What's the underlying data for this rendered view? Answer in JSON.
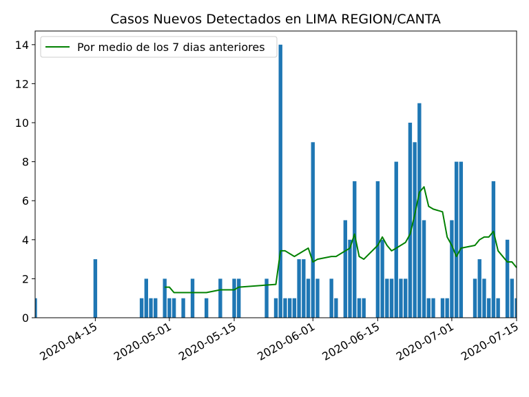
{
  "chart_data": {
    "type": "bar",
    "title": "Casos Nuevos Detectados en LIMA REGION/CANTA",
    "xlabel": "",
    "ylabel": "",
    "x_range": [
      "2020-04-02",
      "2020-07-15"
    ],
    "ylim": [
      0,
      14.7
    ],
    "y_ticks": [
      0,
      2,
      4,
      6,
      8,
      10,
      12,
      14
    ],
    "x_ticks": [
      "2020-04-15",
      "2020-05-01",
      "2020-05-15",
      "2020-06-01",
      "2020-06-15",
      "2020-07-01",
      "2020-07-15"
    ],
    "grid": false,
    "legend": {
      "placement": "top-left",
      "entries": [
        "Por medio de los 7 dias anteriores"
      ]
    },
    "colors": {
      "bars": "#1f77b4",
      "line": "#008000"
    },
    "series": [
      {
        "type": "bar",
        "points": [
          [
            "2020-04-02",
            1
          ],
          [
            "2020-04-15",
            3
          ],
          [
            "2020-04-25",
            1
          ],
          [
            "2020-04-26",
            2
          ],
          [
            "2020-04-27",
            1
          ],
          [
            "2020-04-28",
            1
          ],
          [
            "2020-04-30",
            2
          ],
          [
            "2020-05-01",
            1
          ],
          [
            "2020-05-02",
            1
          ],
          [
            "2020-05-04",
            1
          ],
          [
            "2020-05-06",
            2
          ],
          [
            "2020-05-09",
            1
          ],
          [
            "2020-05-12",
            2
          ],
          [
            "2020-05-15",
            2
          ],
          [
            "2020-05-16",
            2
          ],
          [
            "2020-05-22",
            2
          ],
          [
            "2020-05-24",
            1
          ],
          [
            "2020-05-25",
            14
          ],
          [
            "2020-05-26",
            1
          ],
          [
            "2020-05-27",
            1
          ],
          [
            "2020-05-28",
            1
          ],
          [
            "2020-05-29",
            3
          ],
          [
            "2020-05-30",
            3
          ],
          [
            "2020-05-31",
            2
          ],
          [
            "2020-06-01",
            9
          ],
          [
            "2020-06-02",
            2
          ],
          [
            "2020-06-05",
            2
          ],
          [
            "2020-06-06",
            1
          ],
          [
            "2020-06-08",
            5
          ],
          [
            "2020-06-09",
            4
          ],
          [
            "2020-06-10",
            7
          ],
          [
            "2020-06-11",
            1
          ],
          [
            "2020-06-12",
            1
          ],
          [
            "2020-06-15",
            7
          ],
          [
            "2020-06-16",
            4
          ],
          [
            "2020-06-17",
            2
          ],
          [
            "2020-06-18",
            2
          ],
          [
            "2020-06-19",
            8
          ],
          [
            "2020-06-20",
            2
          ],
          [
            "2020-06-21",
            2
          ],
          [
            "2020-06-22",
            10
          ],
          [
            "2020-06-23",
            9
          ],
          [
            "2020-06-24",
            11
          ],
          [
            "2020-06-25",
            5
          ],
          [
            "2020-06-26",
            1
          ],
          [
            "2020-06-27",
            1
          ],
          [
            "2020-06-29",
            1
          ],
          [
            "2020-06-30",
            1
          ],
          [
            "2020-07-01",
            5
          ],
          [
            "2020-07-02",
            8
          ],
          [
            "2020-07-03",
            8
          ],
          [
            "2020-07-06",
            2
          ],
          [
            "2020-07-07",
            3
          ],
          [
            "2020-07-08",
            2
          ],
          [
            "2020-07-09",
            1
          ],
          [
            "2020-07-10",
            7
          ],
          [
            "2020-07-11",
            1
          ],
          [
            "2020-07-13",
            4
          ],
          [
            "2020-07-14",
            2
          ],
          [
            "2020-07-15",
            1
          ]
        ]
      },
      {
        "type": "line",
        "name": "Por medio de los 7 dias anteriores",
        "points": [
          [
            "2020-04-30",
            1.57
          ],
          [
            "2020-05-01",
            1.57
          ],
          [
            "2020-05-02",
            1.29
          ],
          [
            "2020-05-09",
            1.29
          ],
          [
            "2020-05-12",
            1.43
          ],
          [
            "2020-05-15",
            1.43
          ],
          [
            "2020-05-16",
            1.57
          ],
          [
            "2020-05-24",
            1.71
          ],
          [
            "2020-05-25",
            3.43
          ],
          [
            "2020-05-26",
            3.43
          ],
          [
            "2020-05-28",
            3.14
          ],
          [
            "2020-05-31",
            3.57
          ],
          [
            "2020-06-01",
            2.86
          ],
          [
            "2020-06-02",
            3.0
          ],
          [
            "2020-06-05",
            3.14
          ],
          [
            "2020-06-06",
            3.14
          ],
          [
            "2020-06-08",
            3.43
          ],
          [
            "2020-06-09",
            3.57
          ],
          [
            "2020-06-10",
            4.29
          ],
          [
            "2020-06-11",
            3.14
          ],
          [
            "2020-06-12",
            3.0
          ],
          [
            "2020-06-15",
            3.71
          ],
          [
            "2020-06-16",
            4.14
          ],
          [
            "2020-06-17",
            3.71
          ],
          [
            "2020-06-18",
            3.43
          ],
          [
            "2020-06-19",
            3.57
          ],
          [
            "2020-06-21",
            3.86
          ],
          [
            "2020-06-22",
            4.29
          ],
          [
            "2020-06-23",
            5.29
          ],
          [
            "2020-06-24",
            6.43
          ],
          [
            "2020-06-25",
            6.71
          ],
          [
            "2020-06-26",
            5.71
          ],
          [
            "2020-06-27",
            5.57
          ],
          [
            "2020-06-29",
            5.43
          ],
          [
            "2020-06-30",
            4.14
          ],
          [
            "2020-07-01",
            3.71
          ],
          [
            "2020-07-02",
            3.14
          ],
          [
            "2020-07-03",
            3.57
          ],
          [
            "2020-07-06",
            3.71
          ],
          [
            "2020-07-07",
            4.0
          ],
          [
            "2020-07-08",
            4.14
          ],
          [
            "2020-07-09",
            4.14
          ],
          [
            "2020-07-10",
            4.43
          ],
          [
            "2020-07-11",
            3.43
          ],
          [
            "2020-07-13",
            2.86
          ],
          [
            "2020-07-14",
            2.86
          ],
          [
            "2020-07-15",
            2.57
          ]
        ]
      }
    ]
  }
}
